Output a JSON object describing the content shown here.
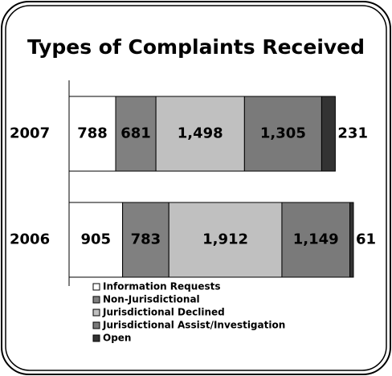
{
  "chart_data": {
    "type": "stacked_bar_horizontal",
    "title": "Types of Complaints Received",
    "categories": [
      "2007",
      "2006"
    ],
    "series": [
      {
        "name": "Information Requests",
        "color": "#ffffff",
        "values": [
          788,
          905
        ],
        "value_labels": [
          "788",
          "905"
        ]
      },
      {
        "name": "Non-Jurisdictional",
        "color": "#808080",
        "values": [
          681,
          783
        ],
        "value_labels": [
          "681",
          "783"
        ]
      },
      {
        "name": "Jurisdictional Declined",
        "color": "#c0c0c0",
        "values": [
          1498,
          1912
        ],
        "value_labels": [
          "1,498",
          "1,912"
        ]
      },
      {
        "name": "Jurisdictional Assist/Investigation",
        "color": "#7a7a7a",
        "values": [
          1305,
          1149
        ],
        "value_labels": [
          "1,305",
          "1,149"
        ]
      },
      {
        "name": "Open",
        "color": "#333333",
        "values": [
          231,
          61
        ],
        "value_labels": [
          "231",
          "61"
        ]
      }
    ]
  }
}
